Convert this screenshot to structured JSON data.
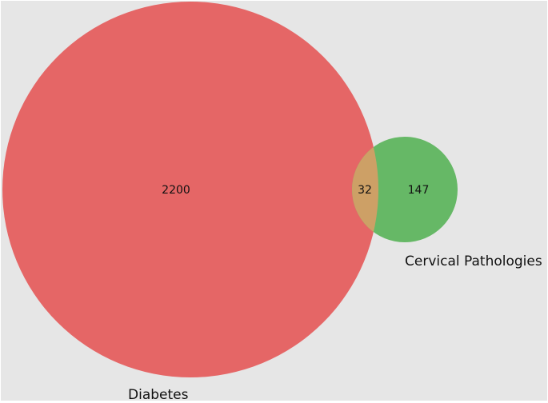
{
  "diagram": {
    "type": "venn2",
    "background_color": "#e6e6e6",
    "sets": [
      {
        "id": "diabetes",
        "label": "Diabetes",
        "only_count": "2200",
        "color": "#e56666"
      },
      {
        "id": "cervical",
        "label": "Cervical Pathologies",
        "only_count": "147",
        "color": "#66b866"
      }
    ],
    "intersection": {
      "count": "32",
      "color": "#cda066"
    }
  }
}
